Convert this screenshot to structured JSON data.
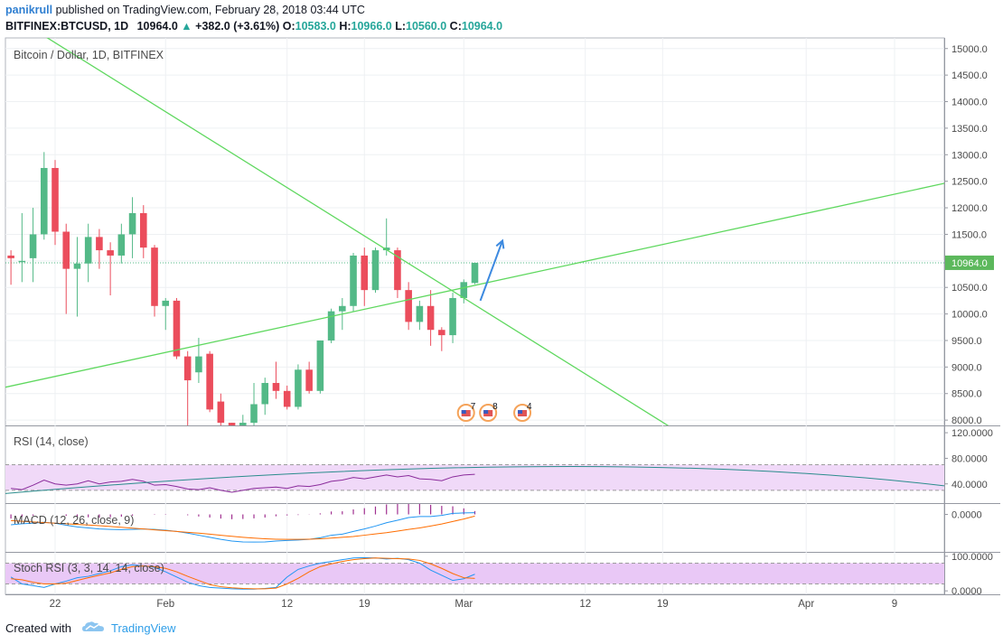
{
  "header": {
    "author": "panikrull",
    "published_text": "published on TradingView.com, February 28, 2018 03:44 UTC",
    "symbol": "BITFINEX:BTCUSD, 1D",
    "last": "10964.0",
    "change_arrow": "▲",
    "change": "+382.0 (+3.61%)",
    "o_label": "O:",
    "o_value": "10583.0",
    "h_label": "H:",
    "h_value": "10966.0",
    "l_label": "L:",
    "l_value": "10560.0",
    "c_label": "C:",
    "c_value": "10964.0"
  },
  "footer": {
    "created_with": "Created with",
    "brand": "TradingView"
  },
  "colors": {
    "up": "#53b987",
    "down": "#eb4d5c",
    "trend": "#5fd85f",
    "arrow": "#3d8ae0",
    "rsi": "#8a2b9b",
    "rsi_arc": "#2a8c8c",
    "band": "#f0d9f8",
    "stoch_band": "#e9c8f6",
    "macd": "#2196f3",
    "signal": "#ff6d00",
    "hist": "#a03090",
    "k": "#2196f3",
    "d": "#ff6d00",
    "price_label_bg": "#5cb85c"
  },
  "chart_data": {
    "type": "candlestick",
    "title": "Bitcoin / Dollar, 1D, BITFINEX",
    "ylim": [
      7900,
      15200
    ],
    "yticks": [
      "15000.0",
      "14500.0",
      "14000.0",
      "13500.0",
      "13000.0",
      "12500.0",
      "12000.0",
      "11500.0",
      "11000.0",
      "10500.0",
      "10000.0",
      "9500.0",
      "9000.0",
      "8500.0",
      "8000.0"
    ],
    "ytick_values": [
      15000,
      14500,
      14000,
      13500,
      13000,
      12500,
      12000,
      11500,
      11000,
      10500,
      10000,
      9500,
      9000,
      8500,
      8000
    ],
    "current_price": 10964,
    "current_price_label": "10964.0",
    "xticks": [
      {
        "label": "22",
        "day": 4
      },
      {
        "label": "Feb",
        "day": 14
      },
      {
        "label": "12",
        "day": 25
      },
      {
        "label": "19",
        "day": 32
      },
      {
        "label": "Mar",
        "day": 41
      },
      {
        "label": "12",
        "day": 52
      },
      {
        "label": "19",
        "day": 59
      },
      {
        "label": "Apr",
        "day": 72
      },
      {
        "label": "9",
        "day": 80
      }
    ],
    "x_range": [
      -0.5,
      84.5
    ],
    "candles": [
      {
        "d": 0,
        "o": 11100,
        "h": 11200,
        "l": 10550,
        "c": 11050
      },
      {
        "d": 1,
        "o": 11000,
        "h": 11900,
        "l": 10600,
        "c": 11000
      },
      {
        "d": 2,
        "o": 11050,
        "h": 12000,
        "l": 10600,
        "c": 11500
      },
      {
        "d": 3,
        "o": 11500,
        "h": 13050,
        "l": 11400,
        "c": 12750
      },
      {
        "d": 4,
        "o": 12750,
        "h": 12900,
        "l": 11300,
        "c": 11550
      },
      {
        "d": 5,
        "o": 11550,
        "h": 11700,
        "l": 10000,
        "c": 10850
      },
      {
        "d": 6,
        "o": 10850,
        "h": 11450,
        "l": 9950,
        "c": 10950
      },
      {
        "d": 7,
        "o": 10950,
        "h": 11700,
        "l": 10600,
        "c": 11450
      },
      {
        "d": 8,
        "o": 11450,
        "h": 11600,
        "l": 10850,
        "c": 11200
      },
      {
        "d": 9,
        "o": 11200,
        "h": 11350,
        "l": 10350,
        "c": 11100
      },
      {
        "d": 10,
        "o": 11100,
        "h": 11700,
        "l": 10950,
        "c": 11500
      },
      {
        "d": 11,
        "o": 11500,
        "h": 12200,
        "l": 11050,
        "c": 11900
      },
      {
        "d": 12,
        "o": 11900,
        "h": 12050,
        "l": 11050,
        "c": 11250
      },
      {
        "d": 13,
        "o": 11250,
        "h": 11300,
        "l": 9950,
        "c": 10150
      },
      {
        "d": 14,
        "o": 10150,
        "h": 10300,
        "l": 9700,
        "c": 10250
      },
      {
        "d": 15,
        "o": 10250,
        "h": 10300,
        "l": 9150,
        "c": 9200
      },
      {
        "d": 16,
        "o": 9200,
        "h": 9300,
        "l": 7900,
        "c": 8750
      },
      {
        "d": 17,
        "o": 8900,
        "h": 9550,
        "l": 8700,
        "c": 9200
      },
      {
        "d": 18,
        "o": 9250,
        "h": 9300,
        "l": 8150,
        "c": 8200
      },
      {
        "d": 19,
        "o": 8350,
        "h": 8500,
        "l": 7900,
        "c": 7950
      },
      {
        "d": 20,
        "o": 7950,
        "h": 7950,
        "l": 7900,
        "c": 7900
      },
      {
        "d": 21,
        "o": 7900,
        "h": 8100,
        "l": 7900,
        "c": 7950
      },
      {
        "d": 22,
        "o": 7950,
        "h": 8700,
        "l": 7900,
        "c": 8300
      },
      {
        "d": 23,
        "o": 8300,
        "h": 8800,
        "l": 8100,
        "c": 8700
      },
      {
        "d": 24,
        "o": 8700,
        "h": 9100,
        "l": 8400,
        "c": 8550
      },
      {
        "d": 25,
        "o": 8550,
        "h": 8650,
        "l": 8200,
        "c": 8250
      },
      {
        "d": 26,
        "o": 8250,
        "h": 9050,
        "l": 8200,
        "c": 8950
      },
      {
        "d": 27,
        "o": 8950,
        "h": 9100,
        "l": 8500,
        "c": 8550
      },
      {
        "d": 28,
        "o": 8550,
        "h": 9500,
        "l": 8500,
        "c": 9500
      },
      {
        "d": 29,
        "o": 9500,
        "h": 10100,
        "l": 9450,
        "c": 10050
      },
      {
        "d": 30,
        "o": 10050,
        "h": 10300,
        "l": 9700,
        "c": 10150
      },
      {
        "d": 31,
        "o": 10150,
        "h": 11150,
        "l": 10050,
        "c": 11100
      },
      {
        "d": 32,
        "o": 11100,
        "h": 11250,
        "l": 10150,
        "c": 10450
      },
      {
        "d": 33,
        "o": 10450,
        "h": 11250,
        "l": 10400,
        "c": 11200
      },
      {
        "d": 34,
        "o": 11200,
        "h": 11800,
        "l": 11100,
        "c": 11250
      },
      {
        "d": 35,
        "o": 11200,
        "h": 11250,
        "l": 10300,
        "c": 10450
      },
      {
        "d": 36,
        "o": 10450,
        "h": 10600,
        "l": 9700,
        "c": 9850
      },
      {
        "d": 37,
        "o": 9850,
        "h": 10250,
        "l": 9700,
        "c": 10150
      },
      {
        "d": 38,
        "o": 10150,
        "h": 10450,
        "l": 9400,
        "c": 9700
      },
      {
        "d": 39,
        "o": 9700,
        "h": 9750,
        "l": 9300,
        "c": 9600
      },
      {
        "d": 40,
        "o": 9600,
        "h": 10400,
        "l": 9450,
        "c": 10300
      },
      {
        "d": 41,
        "o": 10300,
        "h": 10650,
        "l": 10200,
        "c": 10600
      },
      {
        "d": 42,
        "o": 10583,
        "h": 10966,
        "l": 10560,
        "c": 10964
      }
    ],
    "indicators": {
      "rsi": {
        "label": "RSI (14, close)",
        "yticks": [
          "120.0000",
          "80.0000",
          "40.0000"
        ],
        "ytick_values": [
          120,
          80,
          40
        ],
        "ylim": [
          10,
          130
        ],
        "bands": [
          70,
          30
        ],
        "values": [
          33,
          31,
          38,
          46,
          40,
          38,
          40,
          45,
          40,
          43,
          44,
          47,
          44,
          38,
          39,
          36,
          32,
          31,
          34,
          30,
          27,
          30,
          33,
          34,
          35,
          33,
          37,
          36,
          39,
          44,
          46,
          50,
          48,
          51,
          54,
          51,
          53,
          48,
          47,
          45,
          51,
          54,
          55
        ]
      },
      "macd": {
        "label": "MACD (12, 26, close, 9)",
        "yticks": [
          "0.0000"
        ],
        "ytick_values": [
          0
        ],
        "ylim": [
          -1800,
          500
        ],
        "macd": [
          -500,
          -450,
          -420,
          -380,
          -420,
          -520,
          -600,
          -650,
          -700,
          -720,
          -730,
          -720,
          -700,
          -720,
          -760,
          -820,
          -900,
          -1000,
          -1100,
          -1200,
          -1280,
          -1320,
          -1330,
          -1320,
          -1280,
          -1250,
          -1230,
          -1200,
          -1120,
          -1000,
          -950,
          -820,
          -700,
          -560,
          -400,
          -280,
          -150,
          -100,
          -100,
          -50,
          50,
          70,
          80
        ],
        "signal": [
          -300,
          -330,
          -360,
          -390,
          -420,
          -450,
          -480,
          -510,
          -540,
          -580,
          -620,
          -660,
          -700,
          -740,
          -780,
          -820,
          -860,
          -900,
          -950,
          -1000,
          -1050,
          -1100,
          -1140,
          -1170,
          -1190,
          -1200,
          -1200,
          -1190,
          -1170,
          -1140,
          -1100,
          -1060,
          -1000,
          -940,
          -880,
          -800,
          -720,
          -650,
          -560,
          -460,
          -340,
          -220,
          -80
        ],
        "hist": [
          -200,
          -120,
          -60,
          10,
          0,
          -70,
          -120,
          -140,
          -160,
          -140,
          -110,
          -60,
          0,
          20,
          20,
          0,
          -40,
          -100,
          -150,
          -200,
          -230,
          -220,
          -190,
          -150,
          -90,
          -50,
          -30,
          -10,
          50,
          140,
          150,
          240,
          300,
          380,
          480,
          520,
          570,
          550,
          460,
          410,
          390,
          290,
          160
        ]
      },
      "stoch": {
        "label": "Stoch RSI (3, 3, 14, 14, close)",
        "yticks": [
          "100.0000",
          "0.0000"
        ],
        "ytick_values": [
          100,
          0
        ],
        "ylim": [
          -10,
          110
        ],
        "bands": [
          80,
          20
        ],
        "k": [
          40,
          20,
          15,
          10,
          20,
          28,
          38,
          42,
          50,
          58,
          70,
          75,
          72,
          68,
          55,
          40,
          25,
          15,
          10,
          8,
          6,
          5,
          5,
          7,
          10,
          40,
          62,
          72,
          80,
          85,
          90,
          95,
          96,
          95,
          92,
          94,
          90,
          80,
          60,
          45,
          30,
          35,
          48
        ],
        "d": [
          35,
          32,
          25,
          20,
          20,
          22,
          30,
          38,
          45,
          52,
          62,
          70,
          72,
          70,
          65,
          55,
          42,
          30,
          18,
          12,
          9,
          7,
          6,
          6,
          8,
          20,
          36,
          55,
          70,
          78,
          85,
          90,
          93,
          95,
          94,
          93,
          92,
          88,
          78,
          65,
          50,
          38,
          36
        ]
      }
    },
    "trendlines": [
      {
        "name": "descending",
        "p1": {
          "day": 2,
          "price": 15370
        },
        "p2": {
          "day": 31,
          "price": 11600
        },
        "extend_to_day": 61.5
      },
      {
        "name": "ascending",
        "p1": {
          "day": -0.5,
          "price": 8620
        },
        "p2": {
          "day": 84.5,
          "price": 12460
        }
      }
    ],
    "arrow": {
      "from": {
        "day": 42.5,
        "price": 10250
      },
      "to": {
        "day": 44.5,
        "price": 11380
      }
    },
    "events": [
      {
        "label": "7",
        "day": 41.2
      },
      {
        "label": "8",
        "day": 43.2
      },
      {
        "label": "4",
        "day": 46.3
      }
    ]
  }
}
